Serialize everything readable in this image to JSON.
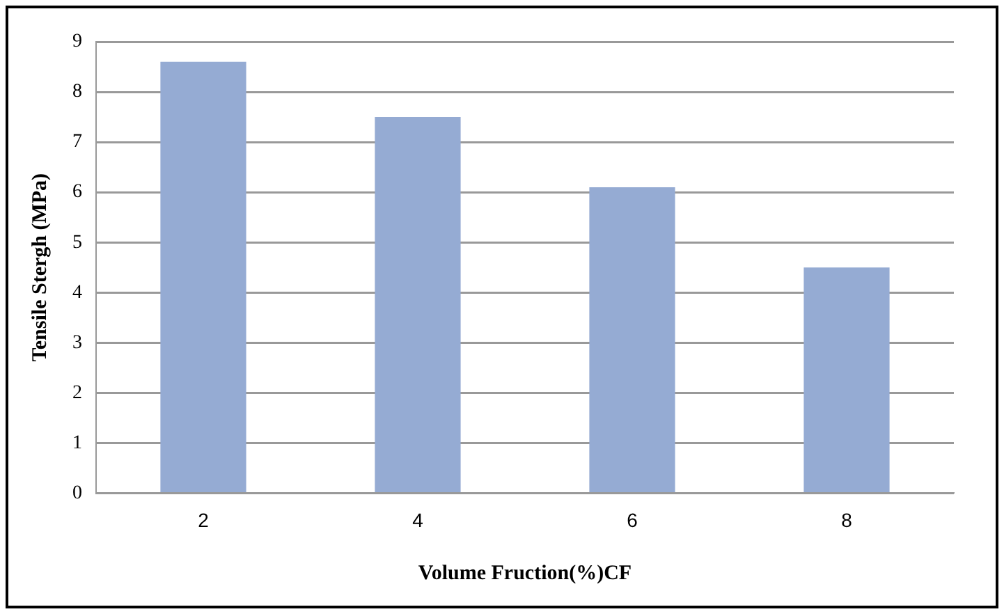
{
  "chart_data": {
    "type": "bar",
    "xlabel": "Volume Fruction(%)CF",
    "ylabel": "Tensile Stergh (MPa)",
    "categories": [
      "2",
      "4",
      "6",
      "8"
    ],
    "values": [
      8.6,
      7.5,
      6.1,
      4.5
    ],
    "color": "#95abd3",
    "ylim": [
      0,
      9
    ],
    "yticks": [
      0,
      1,
      2,
      3,
      4,
      5,
      6,
      7,
      8,
      9
    ],
    "grid": "y",
    "legend": false
  }
}
